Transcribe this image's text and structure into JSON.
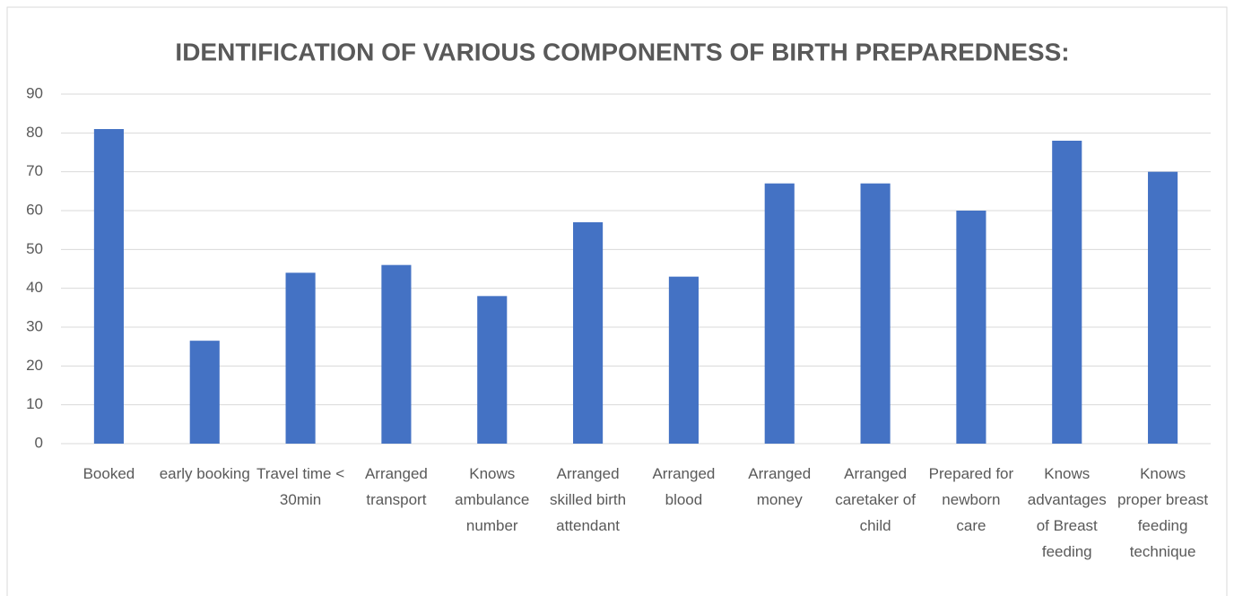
{
  "chart_data": {
    "type": "bar",
    "title": "IDENTIFICATION OF VARIOUS COMPONENTS OF BIRTH PREPAREDNESS:",
    "categories": [
      "Booked",
      "early booking",
      "Travel time < 30min",
      "Arranged transport",
      "Knows ambulance number",
      "Arranged skilled birth attendant",
      "Arranged blood",
      "Arranged money",
      "Arranged caretaker of child",
      "Prepared for newborn care",
      "Knows advantages of Breast feeding",
      "Knows proper breast feeding technique"
    ],
    "values": [
      81,
      26.5,
      44,
      46,
      38,
      57,
      43,
      67,
      67,
      60,
      78,
      70
    ],
    "color": "#4472c4",
    "ylim": [
      0,
      90
    ],
    "yticks": [
      0,
      10,
      20,
      30,
      40,
      50,
      60,
      70,
      80,
      90
    ],
    "grid": true
  }
}
